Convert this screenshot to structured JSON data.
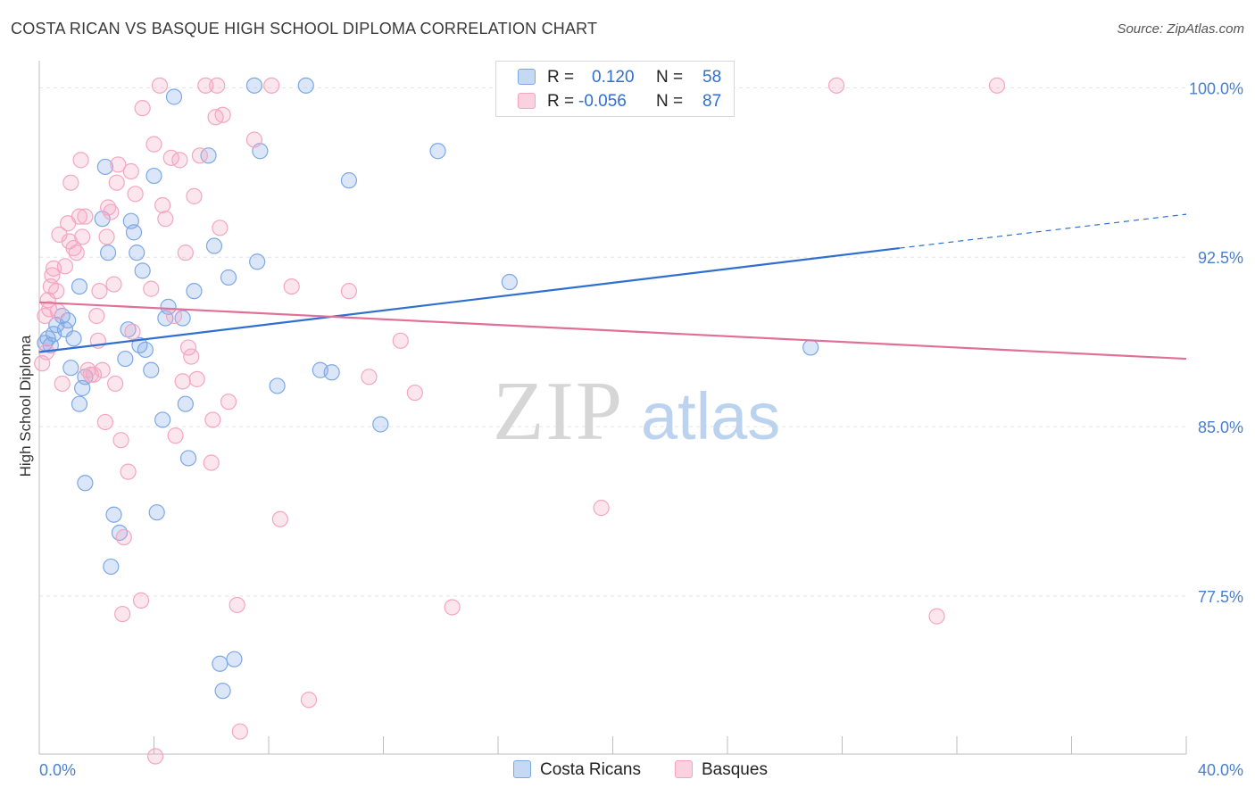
{
  "chart_data": {
    "type": "scatter",
    "title": "COSTA RICAN VS BASQUE HIGH SCHOOL DIPLOMA CORRELATION CHART",
    "source": "Source: ZipAtlas.com",
    "xlabel": "",
    "ylabel": "High School Diploma",
    "xlim": [
      0,
      40
    ],
    "ylim": [
      70.5,
      101.2
    ],
    "x_tick_labels": [
      "0.0%",
      "40.0%"
    ],
    "y_ticks": [
      100.0,
      92.5,
      85.0,
      77.5
    ],
    "y_tick_labels": [
      "100.0%",
      "92.5%",
      "85.0%",
      "77.5%"
    ],
    "grid": true,
    "watermark": "ZIPatlas",
    "legend": {
      "position": "top-center",
      "entries": [
        {
          "r_label": "R =",
          "r_value": "0.120",
          "n_label": "N =",
          "n_value": "58"
        },
        {
          "r_label": "R =",
          "r_value": "-0.056",
          "n_label": "N =",
          "n_value": "87"
        }
      ]
    },
    "series": [
      {
        "name": "Costa Ricans",
        "color": "#7da8e6",
        "line_color": "#2f6fd0",
        "trend": {
          "x0": 0,
          "y0": 88.3,
          "x1": 30,
          "y1": 92.9,
          "dash_to_x": 40,
          "dash_to_y": 94.4
        },
        "points": [
          [
            0.3,
            88.9
          ],
          [
            0.4,
            88.6
          ],
          [
            0.5,
            89.1
          ],
          [
            0.6,
            89.5
          ],
          [
            0.8,
            89.9
          ],
          [
            0.9,
            89.3
          ],
          [
            1.0,
            89.7
          ],
          [
            1.1,
            87.6
          ],
          [
            1.2,
            88.9
          ],
          [
            1.4,
            86.0
          ],
          [
            1.5,
            86.7
          ],
          [
            1.6,
            87.2
          ],
          [
            1.4,
            91.2
          ],
          [
            1.6,
            82.5
          ],
          [
            2.3,
            96.5
          ],
          [
            2.2,
            94.2
          ],
          [
            2.4,
            92.7
          ],
          [
            2.5,
            78.8
          ],
          [
            2.6,
            81.1
          ],
          [
            2.8,
            80.3
          ],
          [
            3.0,
            88.0
          ],
          [
            3.1,
            89.3
          ],
          [
            3.2,
            94.1
          ],
          [
            3.3,
            93.6
          ],
          [
            3.4,
            92.7
          ],
          [
            3.5,
            88.6
          ],
          [
            3.6,
            91.9
          ],
          [
            3.7,
            88.4
          ],
          [
            3.9,
            87.5
          ],
          [
            4.0,
            96.1
          ],
          [
            4.1,
            81.2
          ],
          [
            4.3,
            85.3
          ],
          [
            4.4,
            89.8
          ],
          [
            4.5,
            90.3
          ],
          [
            4.7,
            99.6
          ],
          [
            5.0,
            89.8
          ],
          [
            5.1,
            86.0
          ],
          [
            5.2,
            83.6
          ],
          [
            5.4,
            91.0
          ],
          [
            5.9,
            97.0
          ],
          [
            6.1,
            93.0
          ],
          [
            6.3,
            74.5
          ],
          [
            6.4,
            73.3
          ],
          [
            6.6,
            91.6
          ],
          [
            6.8,
            74.7
          ],
          [
            7.5,
            100.1
          ],
          [
            7.6,
            92.3
          ],
          [
            7.7,
            97.2
          ],
          [
            8.3,
            86.8
          ],
          [
            9.3,
            100.1
          ],
          [
            9.8,
            87.5
          ],
          [
            10.2,
            87.4
          ],
          [
            10.8,
            95.9
          ],
          [
            11.9,
            85.1
          ],
          [
            13.9,
            97.2
          ],
          [
            16.4,
            91.4
          ],
          [
            26.9,
            88.5
          ],
          [
            0.2,
            88.7
          ]
        ]
      },
      {
        "name": "Basques",
        "color": "#f4a6c0",
        "line_color": "#e07098",
        "trend": {
          "x0": 0,
          "y0": 90.5,
          "x1": 40,
          "y1": 88.0
        },
        "points": [
          [
            0.1,
            87.8
          ],
          [
            0.2,
            89.9
          ],
          [
            0.3,
            90.6
          ],
          [
            0.35,
            90.2
          ],
          [
            0.4,
            91.2
          ],
          [
            0.45,
            91.7
          ],
          [
            0.5,
            92.0
          ],
          [
            0.6,
            91.0
          ],
          [
            0.65,
            90.1
          ],
          [
            0.7,
            93.5
          ],
          [
            0.8,
            86.9
          ],
          [
            0.9,
            92.1
          ],
          [
            1.0,
            94.0
          ],
          [
            1.05,
            93.2
          ],
          [
            1.1,
            95.8
          ],
          [
            1.2,
            92.9
          ],
          [
            1.3,
            92.7
          ],
          [
            1.4,
            94.3
          ],
          [
            1.45,
            96.8
          ],
          [
            1.5,
            93.4
          ],
          [
            1.6,
            94.3
          ],
          [
            1.7,
            87.5
          ],
          [
            1.8,
            87.3
          ],
          [
            1.9,
            87.3
          ],
          [
            2.0,
            89.9
          ],
          [
            2.05,
            88.8
          ],
          [
            2.1,
            91.0
          ],
          [
            2.2,
            87.5
          ],
          [
            2.3,
            85.2
          ],
          [
            2.35,
            93.4
          ],
          [
            2.4,
            94.7
          ],
          [
            2.5,
            94.5
          ],
          [
            2.6,
            91.3
          ],
          [
            2.65,
            86.9
          ],
          [
            2.7,
            95.8
          ],
          [
            2.75,
            96.6
          ],
          [
            2.85,
            84.4
          ],
          [
            2.9,
            76.7
          ],
          [
            2.95,
            80.1
          ],
          [
            3.1,
            83.0
          ],
          [
            3.2,
            96.3
          ],
          [
            3.25,
            89.2
          ],
          [
            3.35,
            95.3
          ],
          [
            3.55,
            77.3
          ],
          [
            3.6,
            99.1
          ],
          [
            3.9,
            91.1
          ],
          [
            4.0,
            97.5
          ],
          [
            4.05,
            70.4
          ],
          [
            4.2,
            100.1
          ],
          [
            4.3,
            94.8
          ],
          [
            4.4,
            94.2
          ],
          [
            4.6,
            96.9
          ],
          [
            4.7,
            89.9
          ],
          [
            4.75,
            84.6
          ],
          [
            4.9,
            96.8
          ],
          [
            5.0,
            87.0
          ],
          [
            5.1,
            92.7
          ],
          [
            5.2,
            88.5
          ],
          [
            5.3,
            88.1
          ],
          [
            5.4,
            95.2
          ],
          [
            5.5,
            87.1
          ],
          [
            5.6,
            97.0
          ],
          [
            5.8,
            100.1
          ],
          [
            6.0,
            83.4
          ],
          [
            6.05,
            85.3
          ],
          [
            6.15,
            98.7
          ],
          [
            6.2,
            100.1
          ],
          [
            6.3,
            93.8
          ],
          [
            6.4,
            98.8
          ],
          [
            6.6,
            86.1
          ],
          [
            6.9,
            77.1
          ],
          [
            7.0,
            71.5
          ],
          [
            7.5,
            97.7
          ],
          [
            8.1,
            100.1
          ],
          [
            8.4,
            80.9
          ],
          [
            8.8,
            91.2
          ],
          [
            9.4,
            72.9
          ],
          [
            10.8,
            91.0
          ],
          [
            11.5,
            87.2
          ],
          [
            12.6,
            88.8
          ],
          [
            13.1,
            86.5
          ],
          [
            14.4,
            77.0
          ],
          [
            19.6,
            81.4
          ],
          [
            27.8,
            100.1
          ],
          [
            31.3,
            76.6
          ],
          [
            33.4,
            100.1
          ],
          [
            0.25,
            88.3
          ]
        ]
      }
    ]
  }
}
